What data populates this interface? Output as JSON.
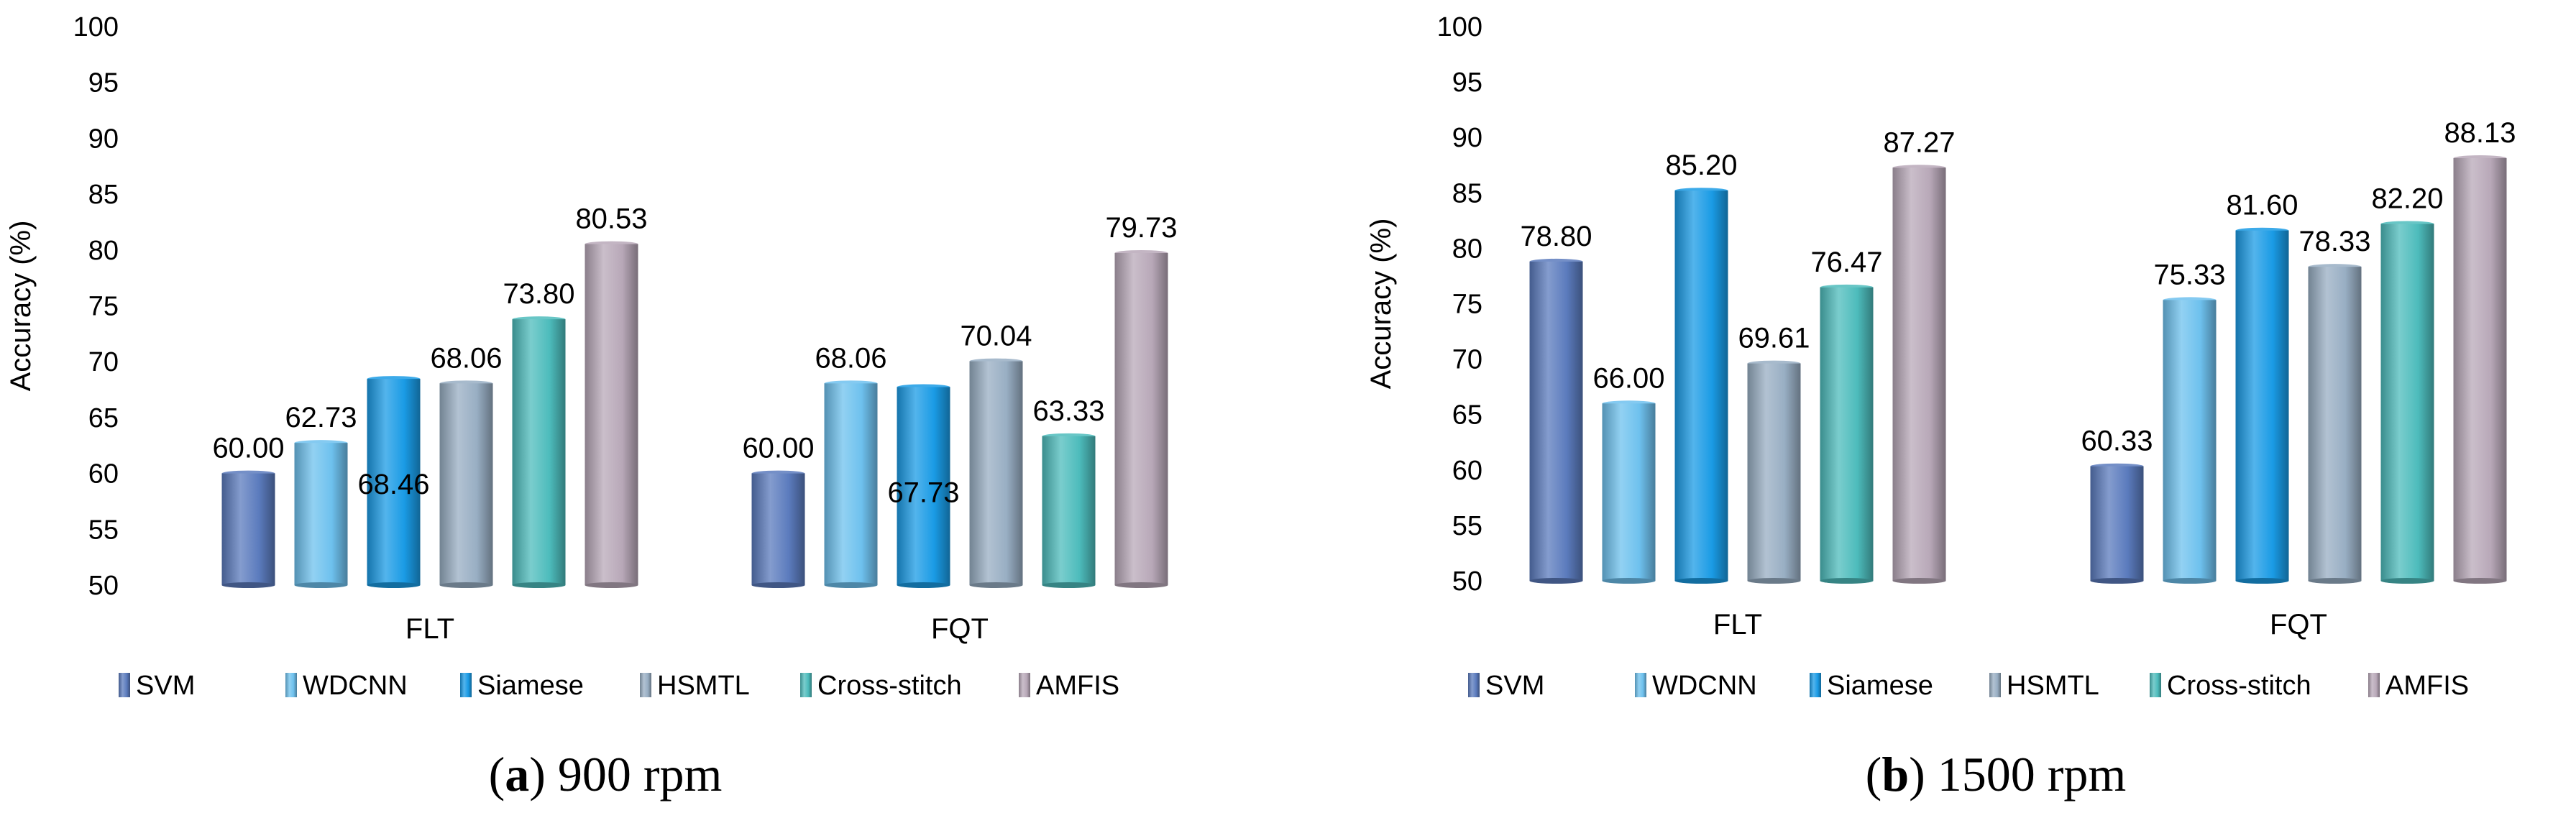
{
  "chart_data": [
    {
      "type": "bar",
      "title": "",
      "ylabel": "Accuracy (%)",
      "xlabel": "",
      "ylim": [
        50,
        100
      ],
      "yticks": [
        "50",
        "55",
        "60",
        "65",
        "70",
        "75",
        "80",
        "85",
        "90",
        "95",
        "100"
      ],
      "categories": [
        "FLT",
        "FQT"
      ],
      "series": [
        {
          "name": "SVM",
          "color": "#5b7bbd",
          "values": [
            60.0,
            60.0
          ],
          "labels": [
            "60.00",
            "60.00"
          ]
        },
        {
          "name": "WDCNN",
          "color": "#6ec1ee",
          "values": [
            62.73,
            68.06
          ],
          "labels": [
            "62.73",
            "68.06"
          ]
        },
        {
          "name": "Siamese",
          "color": "#1a9be5",
          "values": [
            68.46,
            67.73
          ],
          "labels": [
            "68.46",
            "67.73"
          ]
        },
        {
          "name": "HSMTL",
          "color": "#98aec3",
          "values": [
            68.06,
            70.04
          ],
          "labels": [
            "68.06",
            "70.04"
          ]
        },
        {
          "name": "Cross-stitch",
          "color": "#4dbcbc",
          "values": [
            73.8,
            63.33
          ],
          "labels": [
            "73.80",
            "63.33"
          ]
        },
        {
          "name": "AMFIS",
          "color": "#b8a8b8",
          "values": [
            80.53,
            79.73
          ],
          "labels": [
            "80.53",
            "79.73"
          ]
        }
      ],
      "caption": {
        "letter": "a",
        "open": "(",
        "close": ")",
        "text": " 900 rpm"
      }
    },
    {
      "type": "bar",
      "title": "",
      "ylabel": "Accuracy (%)",
      "xlabel": "",
      "ylim": [
        50,
        100
      ],
      "yticks": [
        "50",
        "55",
        "60",
        "65",
        "70",
        "75",
        "80",
        "85",
        "90",
        "95",
        "100"
      ],
      "categories": [
        "FLT",
        "FQT"
      ],
      "series": [
        {
          "name": "SVM",
          "color": "#5b7bbd",
          "values": [
            78.8,
            60.33
          ],
          "labels": [
            "78.80",
            "60.33"
          ]
        },
        {
          "name": "WDCNN",
          "color": "#6ec1ee",
          "values": [
            66.0,
            75.33
          ],
          "labels": [
            "66.00",
            "75.33"
          ]
        },
        {
          "name": "Siamese",
          "color": "#1a9be5",
          "values": [
            85.2,
            81.6
          ],
          "labels": [
            "85.20",
            "81.60"
          ]
        },
        {
          "name": "HSMTL",
          "color": "#98aec3",
          "values": [
            69.61,
            78.33
          ],
          "labels": [
            "69.61",
            "78.33"
          ]
        },
        {
          "name": "Cross-stitch",
          "color": "#4dbcbc",
          "values": [
            76.47,
            82.2
          ],
          "labels": [
            "76.47",
            "82.20"
          ]
        },
        {
          "name": "AMFIS",
          "color": "#b8a8b8",
          "values": [
            87.27,
            88.13
          ],
          "labels": [
            "87.27",
            "88.13"
          ]
        }
      ],
      "caption": {
        "letter": "b",
        "open": "(",
        "close": ")",
        "text": " 1500 rpm"
      }
    }
  ]
}
